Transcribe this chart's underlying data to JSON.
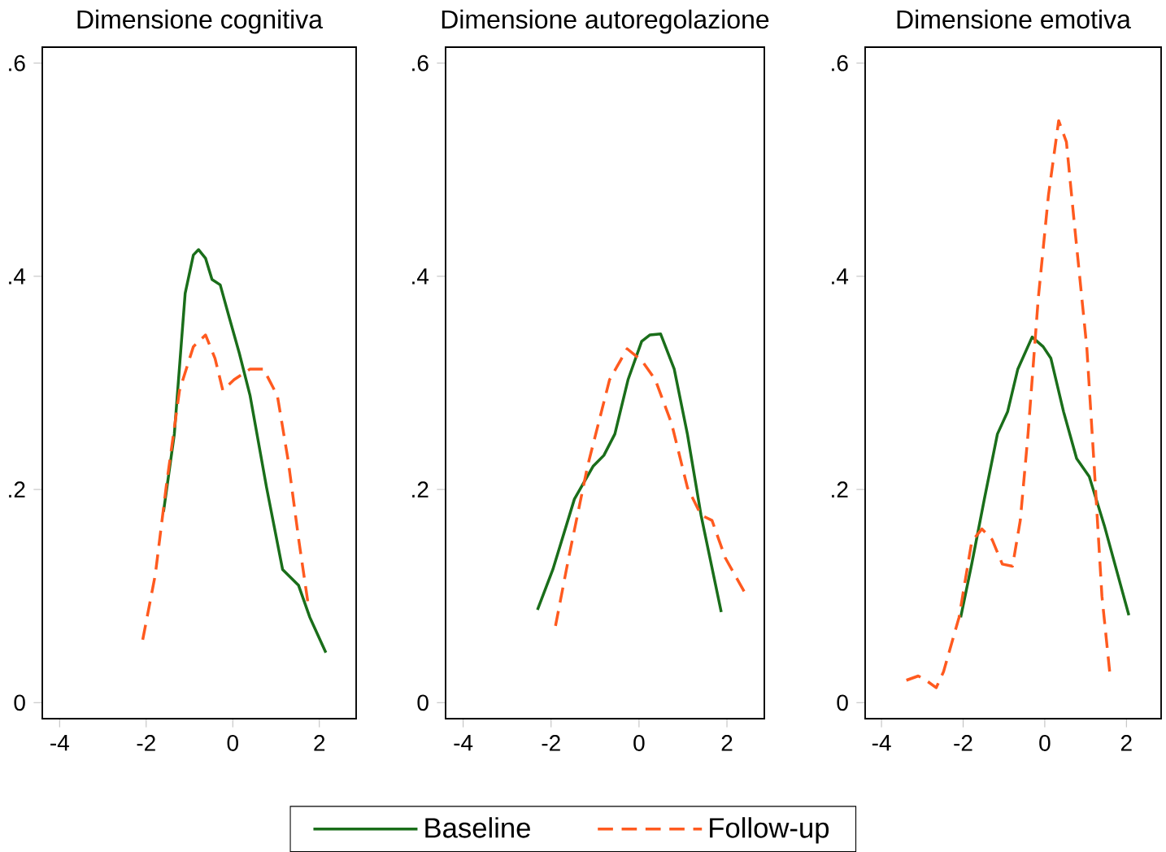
{
  "chart_data": [
    {
      "type": "line",
      "title": "Dimensione cognitiva",
      "xlim": [
        -4.4,
        2.85
      ],
      "ylim": [
        -0.015,
        0.615
      ],
      "xticks": [
        -4,
        -2,
        0,
        2
      ],
      "yticks": [
        0,
        {
          "value": 0.2,
          "label": ".2"
        },
        {
          "value": 0.4,
          "label": ".4"
        },
        {
          "value": 0.6,
          "label": ".6"
        }
      ],
      "grid": false,
      "series": [
        {
          "color": "#1a6e1a",
          "line_style": "solid",
          "x": [
            -1.6,
            -1.35,
            -1.1,
            -0.91,
            -0.79,
            -0.63,
            -0.48,
            -0.29,
            -0.1,
            0.15,
            0.4,
            0.78,
            1.15,
            1.52,
            1.78,
            2.15
          ],
          "values": [
            0.179,
            0.252,
            0.384,
            0.42,
            0.425,
            0.417,
            0.397,
            0.392,
            0.364,
            0.328,
            0.288,
            0.202,
            0.125,
            0.11,
            0.08,
            0.047
          ]
        },
        {
          "color": "#ff5a1f",
          "line_style": "dashed",
          "x": [
            -2.08,
            -1.79,
            -1.54,
            -1.23,
            -0.91,
            -0.63,
            -0.41,
            -0.23,
            0.03,
            0.4,
            0.71,
            1.03,
            1.28,
            1.53,
            1.75
          ],
          "values": [
            0.059,
            0.12,
            0.202,
            0.293,
            0.334,
            0.345,
            0.323,
            0.293,
            0.303,
            0.313,
            0.313,
            0.288,
            0.227,
            0.151,
            0.09
          ]
        }
      ]
    },
    {
      "type": "line",
      "title": "Dimensione autoregolazione",
      "xlim": [
        -4.4,
        2.85
      ],
      "ylim": [
        -0.015,
        0.615
      ],
      "xticks": [
        -4,
        -2,
        0,
        2
      ],
      "yticks": [
        0,
        {
          "value": 0.2,
          "label": ".2"
        },
        {
          "value": 0.4,
          "label": ".4"
        },
        {
          "value": 0.6,
          "label": ".6"
        }
      ],
      "grid": false,
      "legend": "bottom",
      "series": [
        {
          "name": "Baseline",
          "color": "#1a6e1a",
          "line_style": "solid",
          "x": [
            -2.31,
            -1.96,
            -1.47,
            -1.04,
            -0.8,
            -0.55,
            -0.25,
            0.06,
            0.25,
            0.49,
            0.8,
            1.1,
            1.41,
            1.87
          ],
          "values": [
            0.087,
            0.125,
            0.191,
            0.222,
            0.232,
            0.252,
            0.303,
            0.339,
            0.345,
            0.346,
            0.313,
            0.252,
            0.176,
            0.085
          ]
        },
        {
          "name": "Follow-up",
          "color": "#ff5a1f",
          "line_style": "dashed",
          "x": [
            -1.9,
            -1.6,
            -1.17,
            -0.67,
            -0.27,
            0.06,
            0.37,
            0.74,
            1.1,
            1.41,
            1.66,
            1.96,
            2.45
          ],
          "values": [
            0.072,
            0.136,
            0.222,
            0.303,
            0.332,
            0.321,
            0.303,
            0.262,
            0.202,
            0.176,
            0.171,
            0.136,
            0.1
          ]
        }
      ]
    },
    {
      "type": "line",
      "title": "Dimensione emotiva",
      "xlim": [
        -4.4,
        2.85
      ],
      "ylim": [
        -0.015,
        0.615
      ],
      "xticks": [
        -4,
        -2,
        0,
        2
      ],
      "yticks": [
        0,
        {
          "value": 0.2,
          "label": ".2"
        },
        {
          "value": 0.4,
          "label": ".4"
        },
        {
          "value": 0.6,
          "label": ".6"
        }
      ],
      "grid": false,
      "series": [
        {
          "color": "#1a6e1a",
          "line_style": "solid",
          "x": [
            -2.06,
            -1.79,
            -1.48,
            -1.16,
            -0.91,
            -0.66,
            -0.31,
            -0.04,
            0.15,
            0.46,
            0.78,
            1.09,
            1.46,
            2.06
          ],
          "values": [
            0.08,
            0.13,
            0.191,
            0.252,
            0.273,
            0.313,
            0.343,
            0.334,
            0.323,
            0.273,
            0.229,
            0.212,
            0.166,
            0.082
          ]
        },
        {
          "color": "#ff5a1f",
          "line_style": "dashed",
          "x": [
            -3.39,
            -3.1,
            -2.91,
            -2.66,
            -2.48,
            -2.1,
            -1.79,
            -1.54,
            -1.29,
            -1.04,
            -0.79,
            -0.6,
            -0.41,
            -0.16,
            0.09,
            0.34,
            0.53,
            0.71,
            1.03,
            1.21,
            1.4,
            1.59
          ],
          "values": [
            0.021,
            0.025,
            0.021,
            0.014,
            0.029,
            0.08,
            0.151,
            0.163,
            0.153,
            0.13,
            0.128,
            0.171,
            0.252,
            0.379,
            0.476,
            0.546,
            0.526,
            0.455,
            0.333,
            0.222,
            0.1,
            0.029
          ]
        }
      ]
    }
  ]
}
